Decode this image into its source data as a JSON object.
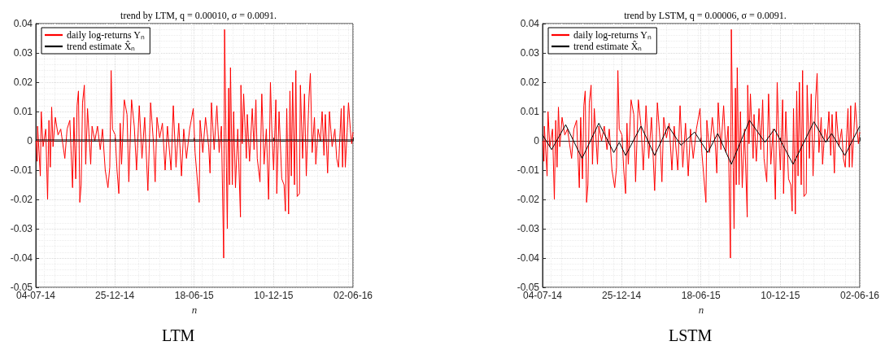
{
  "chart_data": [
    {
      "type": "line",
      "title": "trend by LTM, q = 0.00010, σ = 0.0091.",
      "xlabel": "n",
      "annotations": [
        "LTM"
      ],
      "xlim": [
        "2014-07-04",
        "2016-06-02"
      ],
      "xticks": [
        {
          "value": "2014-07-04",
          "label": "04-07-14"
        },
        {
          "value": "2014-12-25",
          "label": "25-12-14"
        },
        {
          "value": "2015-06-18",
          "label": "18-06-15"
        },
        {
          "value": "2015-12-10",
          "label": "10-12-15"
        },
        {
          "value": "2016-06-02",
          "label": "02-06-16"
        }
      ],
      "ylim": [
        -0.05,
        0.04
      ],
      "yticks": [
        -0.05,
        -0.04,
        -0.03,
        -0.02,
        -0.01,
        0,
        0.01,
        0.02,
        0.03,
        0.04
      ],
      "grid": true,
      "legend": "top left",
      "marker": "none",
      "line_style": "solid",
      "series": [
        {
          "name": "daily log-returns Yₙ",
          "color": "#ff0000",
          "x": [
            "2014-07-05",
            "2014-07-07",
            "2014-07-08",
            "2014-07-14",
            "2014-07-16",
            "2014-07-20",
            "2014-07-26",
            "2014-07-30",
            "2014-08-02",
            "2014-08-05",
            "2014-08-08",
            "2014-08-11",
            "2014-08-16",
            "2014-08-22",
            "2014-08-28",
            "2014-09-06",
            "2014-09-11",
            "2014-09-17",
            "2014-09-23",
            "2014-09-26",
            "2014-09-30",
            "2014-10-03",
            "2014-10-06",
            "2014-10-09",
            "2014-10-12",
            "2014-10-15",
            "2014-10-19",
            "2014-10-22",
            "2014-10-26",
            "2014-11-02",
            "2014-11-05",
            "2014-11-11",
            "2014-11-17",
            "2014-11-23",
            "2014-11-28",
            "2014-12-04",
            "2014-12-10",
            "2014-12-14",
            "2014-12-17",
            "2014-12-20",
            "2014-12-26",
            "2014-12-30",
            "2015-01-03",
            "2015-01-06",
            "2015-01-09",
            "2015-01-15",
            "2015-01-21",
            "2015-01-25",
            "2015-01-31",
            "2015-02-06",
            "2015-02-11",
            "2015-02-17",
            "2015-02-23",
            "2015-03-01",
            "2015-03-08",
            "2015-03-14",
            "2015-03-20",
            "2015-03-24",
            "2015-03-28",
            "2015-04-03",
            "2015-04-09",
            "2015-04-15",
            "2015-04-20",
            "2015-04-28",
            "2015-05-03",
            "2015-05-09",
            "2015-05-15",
            "2015-05-21",
            "2015-05-26",
            "2015-06-01",
            "2015-06-08",
            "2015-06-16",
            "2015-06-20",
            "2015-06-29",
            "2015-07-01",
            "2015-07-07",
            "2015-07-13",
            "2015-07-20",
            "2015-07-23",
            "2015-07-26",
            "2015-08-01",
            "2015-08-07",
            "2015-08-12",
            "2015-08-17",
            "2015-08-22",
            "2015-08-24",
            "2015-08-28",
            "2015-08-30",
            "2015-09-02",
            "2015-09-04",
            "2015-09-06",
            "2015-09-10",
            "2015-09-13",
            "2015-09-17",
            "2015-09-22",
            "2015-09-28",
            "2015-09-29",
            "2015-10-02",
            "2015-10-05",
            "2015-10-11",
            "2015-10-13",
            "2015-10-18",
            "2015-10-24",
            "2015-10-28",
            "2015-11-01",
            "2015-11-04",
            "2015-11-10",
            "2015-11-14",
            "2015-11-19",
            "2015-11-24",
            "2015-11-29",
            "2015-12-03",
            "2015-12-06",
            "2015-12-10",
            "2015-12-15",
            "2015-12-17",
            "2015-12-22",
            "2015-12-28",
            "2016-01-02",
            "2016-01-05",
            "2016-01-08",
            "2016-01-12",
            "2016-01-15",
            "2016-01-18",
            "2016-01-21",
            "2016-01-25",
            "2016-01-28",
            "2016-01-31",
            "2016-02-05",
            "2016-02-07",
            "2016-02-12",
            "2016-02-16",
            "2016-02-20",
            "2016-02-26",
            "2016-02-29",
            "2016-03-04",
            "2016-03-09",
            "2016-03-12",
            "2016-03-17",
            "2016-03-22",
            "2016-03-26",
            "2016-03-30",
            "2016-04-02",
            "2016-04-07",
            "2016-04-11",
            "2016-04-17",
            "2016-04-23",
            "2016-04-27",
            "2016-05-01",
            "2016-05-07",
            "2016-05-10",
            "2016-05-13",
            "2016-05-16",
            "2016-05-20",
            "2016-05-23",
            "2016-05-27",
            "2016-05-30",
            "2016-06-02"
          ],
          "values": [
            0,
            -0.007,
            0.005,
            -0.012,
            0.01,
            -0.002,
            0.004,
            -0.02,
            0.007,
            -0.009,
            0.0115,
            -0.002,
            0.008,
            0.002,
            0.004,
            -0.006,
            0.004,
            0.007,
            -0.016,
            0.008,
            -0.013,
            0.012,
            0.017,
            -0.021,
            -0.015,
            0.013,
            0.019,
            -0.008,
            0.011,
            -0.008,
            0.005,
            0,
            0.005,
            -0.003,
            0.004,
            -0.01,
            -0.016,
            -0.009,
            0.024,
            0.004,
            0.002,
            -0.01,
            -0.018,
            0.006,
            -0.008,
            0.014,
            0.009,
            -0.014,
            0.014,
            0.005,
            -0.01,
            0.012,
            -0.006,
            0.008,
            -0.017,
            0.013,
            0,
            -0.014,
            0.008,
            0.001,
            0.006,
            -0.01,
            0.005,
            -0.01,
            0.012,
            -0.009,
            0.006,
            -0.012,
            0.004,
            -0.006,
            0.004,
            0.011,
            -0.004,
            -0.021,
            0.007,
            -0.004,
            0.008,
            -0.002,
            -0.011,
            0.013,
            -0.003,
            0.012,
            -0.004,
            0.005,
            -0.04,
            0.038,
            -0.009,
            -0.03,
            0.018,
            -0.015,
            0.025,
            -0.015,
            0.01,
            -0.016,
            0.004,
            -0.026,
            0.019,
            -0.001,
            0.016,
            -0.006,
            0.009,
            -0.007,
            0.011,
            -0.003,
            0.014,
            -0.006,
            -0.014,
            0.016,
            -0.008,
            0.004,
            -0.02,
            0.02,
            0.004,
            -0.01,
            0.014,
            -0.018,
            0.01,
            -0.013,
            -0.015,
            -0.024,
            0.011,
            -0.025,
            0.017,
            -0.012,
            0.02,
            -0.015,
            0.024,
            -0.019,
            -0.018,
            0.019,
            -0.006,
            0.016,
            -0.012,
            0.015,
            0.023,
            -0.004,
            0.008,
            -0.008,
            0.004,
            0,
            0.01,
            -0.005,
            0.009,
            -0.011,
            0.01,
            -0.002,
            0.004,
            -0.006,
            -0.009,
            0.011,
            -0.009,
            0.012,
            -0.009,
            0.003,
            0.013,
            0.004,
            -0.001,
            0.003
          ]
        },
        {
          "name": "trend estimate X̂ₙ",
          "color": "#000000",
          "x": [
            "2014-07-04",
            "2016-06-02"
          ],
          "values": [
            0.0003,
            0.0003
          ]
        }
      ]
    },
    {
      "type": "line",
      "title": "trend by LSTM, q = 0.00006, σ = 0.0091.",
      "xlabel": "n",
      "annotations": [
        "LSTM"
      ],
      "xlim": [
        "2014-07-04",
        "2016-06-02"
      ],
      "xticks": [
        {
          "value": "2014-07-04",
          "label": "04-07-14"
        },
        {
          "value": "2014-12-25",
          "label": "25-12-14"
        },
        {
          "value": "2015-06-18",
          "label": "18-06-15"
        },
        {
          "value": "2015-12-10",
          "label": "10-12-15"
        },
        {
          "value": "2016-06-02",
          "label": "02-06-16"
        }
      ],
      "ylim": [
        -0.05,
        0.04
      ],
      "yticks": [
        -0.05,
        -0.04,
        -0.03,
        -0.02,
        -0.01,
        0,
        0.01,
        0.02,
        0.03,
        0.04
      ],
      "grid": true,
      "legend": "top left",
      "marker": "none",
      "line_style": "solid",
      "series": [
        {
          "name": "daily log-returns Yₙ",
          "color": "#ff0000",
          "x": [
            "2014-07-05",
            "2014-07-07",
            "2014-07-08",
            "2014-07-14",
            "2014-07-16",
            "2014-07-20",
            "2014-07-26",
            "2014-07-30",
            "2014-08-02",
            "2014-08-05",
            "2014-08-08",
            "2014-08-11",
            "2014-08-16",
            "2014-08-22",
            "2014-08-28",
            "2014-09-06",
            "2014-09-11",
            "2014-09-17",
            "2014-09-23",
            "2014-09-26",
            "2014-09-30",
            "2014-10-03",
            "2014-10-06",
            "2014-10-09",
            "2014-10-12",
            "2014-10-15",
            "2014-10-19",
            "2014-10-22",
            "2014-10-26",
            "2014-11-02",
            "2014-11-05",
            "2014-11-11",
            "2014-11-17",
            "2014-11-23",
            "2014-11-28",
            "2014-12-04",
            "2014-12-10",
            "2014-12-14",
            "2014-12-17",
            "2014-12-20",
            "2014-12-26",
            "2014-12-30",
            "2015-01-03",
            "2015-01-06",
            "2015-01-09",
            "2015-01-15",
            "2015-01-21",
            "2015-01-25",
            "2015-01-31",
            "2015-02-06",
            "2015-02-11",
            "2015-02-17",
            "2015-02-23",
            "2015-03-01",
            "2015-03-08",
            "2015-03-14",
            "2015-03-20",
            "2015-03-24",
            "2015-03-28",
            "2015-04-03",
            "2015-04-09",
            "2015-04-15",
            "2015-04-20",
            "2015-04-28",
            "2015-05-03",
            "2015-05-09",
            "2015-05-15",
            "2015-05-21",
            "2015-05-26",
            "2015-06-01",
            "2015-06-08",
            "2015-06-16",
            "2015-06-20",
            "2015-06-29",
            "2015-07-01",
            "2015-07-07",
            "2015-07-13",
            "2015-07-20",
            "2015-07-23",
            "2015-07-26",
            "2015-08-01",
            "2015-08-07",
            "2015-08-12",
            "2015-08-17",
            "2015-08-22",
            "2015-08-24",
            "2015-08-28",
            "2015-08-30",
            "2015-09-02",
            "2015-09-04",
            "2015-09-06",
            "2015-09-10",
            "2015-09-13",
            "2015-09-17",
            "2015-09-22",
            "2015-09-28",
            "2015-09-29",
            "2015-10-02",
            "2015-10-05",
            "2015-10-11",
            "2015-10-13",
            "2015-10-18",
            "2015-10-24",
            "2015-10-28",
            "2015-11-01",
            "2015-11-04",
            "2015-11-10",
            "2015-11-14",
            "2015-11-19",
            "2015-11-24",
            "2015-11-29",
            "2015-12-03",
            "2015-12-06",
            "2015-12-10",
            "2015-12-15",
            "2015-12-17",
            "2015-12-22",
            "2015-12-28",
            "2016-01-02",
            "2016-01-05",
            "2016-01-08",
            "2016-01-12",
            "2016-01-15",
            "2016-01-18",
            "2016-01-21",
            "2016-01-25",
            "2016-01-28",
            "2016-01-31",
            "2016-02-05",
            "2016-02-07",
            "2016-02-12",
            "2016-02-16",
            "2016-02-20",
            "2016-02-26",
            "2016-02-29",
            "2016-03-04",
            "2016-03-09",
            "2016-03-12",
            "2016-03-17",
            "2016-03-22",
            "2016-03-26",
            "2016-03-30",
            "2016-04-02",
            "2016-04-07",
            "2016-04-11",
            "2016-04-17",
            "2016-04-23",
            "2016-04-27",
            "2016-05-01",
            "2016-05-07",
            "2016-05-10",
            "2016-05-13",
            "2016-05-16",
            "2016-05-20",
            "2016-05-23",
            "2016-05-27",
            "2016-05-30",
            "2016-06-02"
          ],
          "values": [
            0,
            -0.007,
            0.005,
            -0.012,
            0.01,
            -0.002,
            0.004,
            -0.02,
            0.007,
            -0.009,
            0.0115,
            -0.002,
            0.008,
            0.002,
            0.004,
            -0.006,
            0.004,
            0.007,
            -0.016,
            0.008,
            -0.013,
            0.012,
            0.017,
            -0.021,
            -0.015,
            0.013,
            0.019,
            -0.008,
            0.011,
            -0.008,
            0.005,
            0,
            0.005,
            -0.003,
            0.004,
            -0.01,
            -0.016,
            -0.009,
            0.024,
            0.004,
            0.002,
            -0.01,
            -0.018,
            0.006,
            -0.008,
            0.014,
            0.009,
            -0.014,
            0.014,
            0.005,
            -0.01,
            0.012,
            -0.006,
            0.008,
            -0.017,
            0.013,
            0,
            -0.014,
            0.008,
            0.001,
            0.006,
            -0.01,
            0.005,
            -0.01,
            0.012,
            -0.009,
            0.006,
            -0.012,
            0.004,
            -0.006,
            0.004,
            0.011,
            -0.004,
            -0.021,
            0.007,
            -0.004,
            0.008,
            -0.002,
            -0.011,
            0.013,
            -0.003,
            0.012,
            -0.004,
            0.005,
            -0.04,
            0.038,
            -0.009,
            -0.03,
            0.018,
            -0.015,
            0.025,
            -0.015,
            0.01,
            -0.016,
            0.004,
            -0.026,
            0.019,
            -0.001,
            0.016,
            -0.006,
            0.009,
            -0.007,
            0.011,
            -0.003,
            0.014,
            -0.006,
            -0.014,
            0.016,
            -0.008,
            0.004,
            -0.02,
            0.02,
            0.004,
            -0.01,
            0.014,
            -0.018,
            0.01,
            -0.013,
            -0.015,
            -0.024,
            0.011,
            -0.025,
            0.017,
            -0.012,
            0.02,
            -0.015,
            0.024,
            -0.019,
            -0.018,
            0.019,
            -0.006,
            0.016,
            -0.012,
            0.015,
            0.023,
            -0.004,
            0.008,
            -0.008,
            0.004,
            0,
            0.01,
            -0.005,
            0.009,
            -0.011,
            0.01,
            -0.002,
            0.004,
            -0.006,
            -0.009,
            0.011,
            -0.009,
            0.012,
            -0.009,
            0.003,
            0.013,
            0.004,
            -0.001,
            0.003
          ]
        },
        {
          "name": "trend estimate X̂ₙ",
          "color": "#000000",
          "x": [
            "2014-07-04",
            "2014-07-24",
            "2014-08-24",
            "2014-09-29",
            "2014-11-05",
            "2014-12-08",
            "2014-12-20",
            "2015-01-03",
            "2015-02-06",
            "2015-03-08",
            "2015-04-07",
            "2015-05-05",
            "2015-06-04",
            "2015-07-03",
            "2015-07-25",
            "2015-08-24",
            "2015-10-03",
            "2015-11-06",
            "2015-11-27",
            "2016-01-07",
            "2016-02-22",
            "2016-03-19",
            "2016-04-01",
            "2016-04-30",
            "2016-06-02"
          ],
          "values": [
            0.002,
            -0.003,
            0.0055,
            -0.006,
            0.006,
            -0.004,
            -0.0005,
            -0.005,
            0.005,
            -0.005,
            0.005,
            -0.0015,
            0.003,
            -0.004,
            0.0025,
            -0.008,
            0.007,
            -0.0005,
            0.004,
            -0.008,
            0.0065,
            -0.0005,
            0.0025,
            -0.005,
            0.005
          ]
        }
      ]
    }
  ]
}
